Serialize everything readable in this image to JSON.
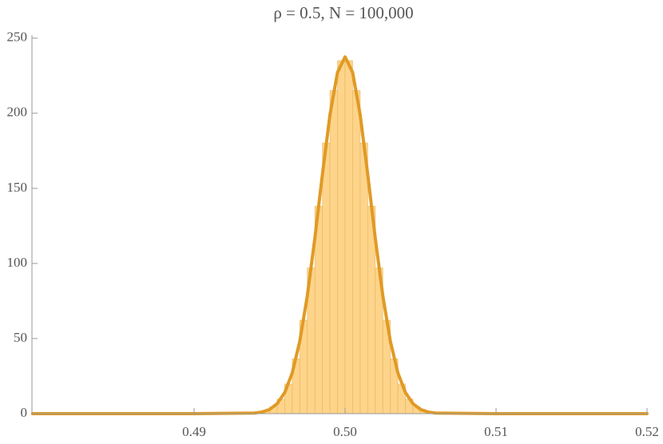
{
  "chart_data": {
    "type": "histogram",
    "title": "ρ = 0.5, N = 100,000",
    "bins": [
      0.494,
      0.4945,
      0.495,
      0.4955,
      0.496,
      0.4965,
      0.497,
      0.4975,
      0.498,
      0.4985,
      0.499,
      0.4995,
      0.5,
      0.5005,
      0.501,
      0.5015,
      0.502,
      0.5025,
      0.503,
      0.5035,
      0.504,
      0.5045,
      0.505,
      0.5055,
      0.506
    ],
    "counts": [
      0.7,
      1.8,
      4.4,
      9.7,
      19.7,
      36.5,
      62.2,
      97.0,
      138.1,
      180.2,
      215.1,
      235.0,
      235.0,
      215.1,
      180.2,
      138.1,
      97.0,
      62.2,
      36.5,
      19.7,
      9.7,
      4.4,
      1.8,
      0.7
    ],
    "color": "#fdd48a",
    "edge_color": "#e9b866",
    "curve": {
      "type": "line",
      "color": "#e09a25",
      "x": [
        0.4793,
        0.49,
        0.494,
        0.4945,
        0.495,
        0.4955,
        0.496,
        0.4965,
        0.497,
        0.4975,
        0.498,
        0.4985,
        0.499,
        0.4995,
        0.5,
        0.5005,
        0.501,
        0.5015,
        0.502,
        0.5025,
        0.503,
        0.5035,
        0.504,
        0.5045,
        0.505,
        0.5055,
        0.506,
        0.51,
        0.52
      ],
      "values": [
        0,
        0,
        0.4,
        1.1,
        2.8,
        6.6,
        14.0,
        27.1,
        48.2,
        78.5,
        116.9,
        159.4,
        199.0,
        227.2,
        237.5,
        227.2,
        199.0,
        159.4,
        116.9,
        78.5,
        48.2,
        27.1,
        14.0,
        6.6,
        2.8,
        1.1,
        0.4,
        0,
        0
      ]
    },
    "xlim": [
      0.47926,
      0.52
    ],
    "ylim": [
      0,
      252
    ],
    "xticks": [
      0.49,
      {
        "value": 0.5,
        "label": "0.50"
      },
      0.51,
      0.52
    ],
    "yticks": [
      0,
      50,
      100,
      150,
      200,
      250
    ]
  }
}
